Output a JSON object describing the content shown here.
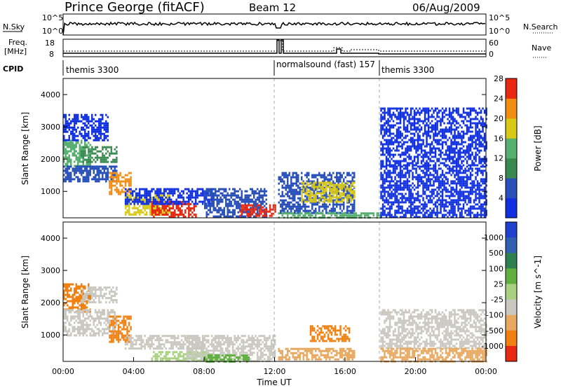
{
  "header": {
    "station": "Prince George (fitACF)",
    "beam": "Beam 12",
    "date": "06/Aug/2009"
  },
  "strip_labels": {
    "nsky": "N.Sky",
    "nsearch": "N.Search",
    "freq_line1": "Freq.",
    "freq_line2": "[MHz]",
    "nave": "Nave",
    "cpid": "CPID"
  },
  "strip_ticks": {
    "nsky_left_top": "10^5",
    "nsky_left_bottom": "10^0",
    "nsky_right_top": "10^5",
    "nsky_right_bottom": "10^0",
    "freq_left_top": "18",
    "freq_left_bottom": "8",
    "freq_right_top": "60",
    "freq_right_bottom": "0"
  },
  "cpid_segments": [
    {
      "label": "themis 3300",
      "start_hour": 0,
      "end_hour": 12.0
    },
    {
      "label": "normalsound (fast) 157",
      "start_hour": 12.0,
      "end_hour": 18.0
    },
    {
      "label": "themis 3300",
      "start_hour": 18.0,
      "end_hour": 24.0
    }
  ],
  "chart_data": [
    {
      "type": "heatmap",
      "panel": "power",
      "ylabel": "Slant Range [km]",
      "xlabel": "",
      "xlim": [
        0,
        24
      ],
      "ylim": [
        180,
        4500
      ],
      "yticks": [
        "1000",
        "2000",
        "3000",
        "4000"
      ],
      "colorbar_label": "Power [dB]",
      "colorbar_ticks": [
        "4",
        "8",
        "12",
        "16",
        "20",
        "24",
        "28"
      ],
      "colorbar_colors": [
        "#1030e0",
        "#2850b8",
        "#3a8a50",
        "#58b070",
        "#d8c818",
        "#f08c10",
        "#e82810"
      ],
      "regions": [
        {
          "t0": 0.0,
          "t1": 1.5,
          "r0": 1800,
          "r1": 2600,
          "level": 3
        },
        {
          "t0": 0.0,
          "t1": 3.0,
          "r0": 1300,
          "r1": 1800,
          "level": 1
        },
        {
          "t0": 0.0,
          "t1": 2.5,
          "r0": 2600,
          "r1": 3400,
          "level": 0
        },
        {
          "t0": 1.0,
          "t1": 3.0,
          "r0": 1900,
          "r1": 2400,
          "level": 2
        },
        {
          "t0": 2.6,
          "t1": 3.8,
          "r0": 900,
          "r1": 1600,
          "level": 5
        },
        {
          "t0": 3.5,
          "t1": 6.0,
          "r0": 250,
          "r1": 900,
          "level": 4
        },
        {
          "t0": 5.0,
          "t1": 7.5,
          "r0": 200,
          "r1": 700,
          "level": 6
        },
        {
          "t0": 3.5,
          "t1": 8.5,
          "r0": 600,
          "r1": 1100,
          "level": 0
        },
        {
          "t0": 8.0,
          "t1": 11.5,
          "r0": 200,
          "r1": 1100,
          "level": 1
        },
        {
          "t0": 10.0,
          "t1": 12.0,
          "r0": 250,
          "r1": 600,
          "level": 6
        },
        {
          "t0": 12.2,
          "t1": 16.5,
          "r0": 300,
          "r1": 1600,
          "level": 1
        },
        {
          "t0": 13.5,
          "t1": 16.5,
          "r0": 700,
          "r1": 1300,
          "level": 4
        },
        {
          "t0": 12.2,
          "t1": 18.0,
          "r0": 200,
          "r1": 350,
          "level": 3
        },
        {
          "t0": 18.0,
          "t1": 24.0,
          "r0": 200,
          "r1": 1800,
          "level": 0
        },
        {
          "t0": 18.0,
          "t1": 24.0,
          "r0": 1800,
          "r1": 3600,
          "level": 0
        }
      ]
    },
    {
      "type": "heatmap",
      "panel": "velocity",
      "ylabel": "Slant Range [km]",
      "xlabel": "Time UT",
      "xlim": [
        0,
        24
      ],
      "ylim": [
        180,
        4500
      ],
      "xticks": [
        "00:00",
        "04:00",
        "08:00",
        "12:00",
        "16:00",
        "20:00",
        "00:00"
      ],
      "yticks": [
        "1000",
        "2000",
        "3000",
        "4000"
      ],
      "colorbar_label": "Velocity [m s^-1]",
      "colorbar_ticks": [
        "1000",
        "500",
        "100",
        "25",
        "-25",
        "-100",
        "-500",
        "-1000"
      ],
      "colorbar_colors": [
        "#2040d0",
        "#3060b0",
        "#2e8050",
        "#60b040",
        "#a8d080",
        "#c8c8c0",
        "#e8a860",
        "#f08010",
        "#e82810"
      ],
      "regions": [
        {
          "t0": 0.0,
          "t1": 1.5,
          "r0": 1700,
          "r1": 2600,
          "level": 7
        },
        {
          "t0": 0.0,
          "t1": 3.0,
          "r0": 1000,
          "r1": 1800,
          "level": 5
        },
        {
          "t0": 1.0,
          "t1": 3.0,
          "r0": 2000,
          "r1": 2500,
          "level": 5
        },
        {
          "t0": 2.6,
          "t1": 3.8,
          "r0": 800,
          "r1": 1600,
          "level": 7
        },
        {
          "t0": 3.5,
          "t1": 8.0,
          "r0": 600,
          "r1": 1000,
          "level": 5
        },
        {
          "t0": 5.0,
          "t1": 8.5,
          "r0": 200,
          "r1": 500,
          "level": 4
        },
        {
          "t0": 7.0,
          "t1": 12.0,
          "r0": 200,
          "r1": 1000,
          "level": 5
        },
        {
          "t0": 8.0,
          "t1": 10.5,
          "r0": 200,
          "r1": 400,
          "level": 3
        },
        {
          "t0": 12.2,
          "t1": 16.5,
          "r0": 250,
          "r1": 600,
          "level": 6
        },
        {
          "t0": 14.0,
          "t1": 16.2,
          "r0": 800,
          "r1": 1300,
          "level": 7
        },
        {
          "t0": 18.0,
          "t1": 24.0,
          "r0": 600,
          "r1": 1800,
          "level": 5
        },
        {
          "t0": 18.0,
          "t1": 24.0,
          "r0": 200,
          "r1": 600,
          "level": 6
        }
      ]
    }
  ],
  "time_axis": {
    "xlabel": "Time UT",
    "xticks": [
      "00:00",
      "04:00",
      "08:00",
      "12:00",
      "16:00",
      "20:00",
      "00:00"
    ]
  }
}
